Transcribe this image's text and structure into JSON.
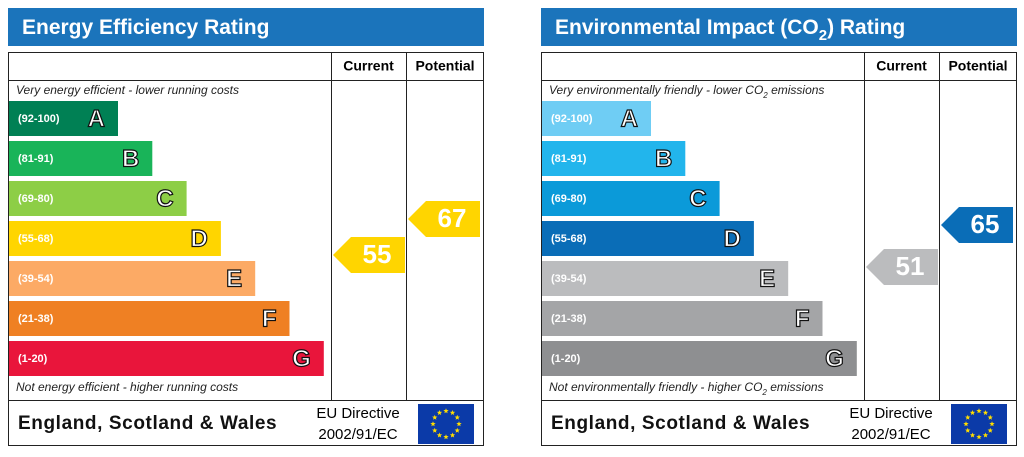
{
  "panels": [
    {
      "title": [
        "Energy Efficiency Rating"
      ],
      "headers": [
        "Current",
        "Potential"
      ],
      "top_note": [
        "Very energy efficient - lower running costs"
      ],
      "bottom_note": [
        "Not energy efficient - higher running costs"
      ],
      "bands": [
        {
          "range": "(92-100)",
          "letter": "A",
          "color": "#008054"
        },
        {
          "range": "(81-91)",
          "letter": "B",
          "color": "#19b459"
        },
        {
          "range": "(69-80)",
          "letter": "C",
          "color": "#8dce46"
        },
        {
          "range": "(55-68)",
          "letter": "D",
          "color": "#ffd500"
        },
        {
          "range": "(39-54)",
          "letter": "E",
          "color": "#fcaa65"
        },
        {
          "range": "(21-38)",
          "letter": "F",
          "color": "#ef8023"
        },
        {
          "range": "(1-20)",
          "letter": "G",
          "color": "#e9153b"
        }
      ],
      "current": "55",
      "potential": "67",
      "footer": "England, Scotland & Wales",
      "directive": [
        "EU Directive",
        "2002/91/EC"
      ]
    },
    {
      "title": [
        "Environmental Impact (CO",
        "2",
        ") Rating"
      ],
      "headers": [
        "Current",
        "Potential"
      ],
      "top_note": [
        "Very environmentally friendly - lower CO",
        "2",
        " emissions"
      ],
      "bottom_note": [
        "Not environmentally friendly - higher CO",
        "2",
        " emissions"
      ],
      "bands": [
        {
          "range": "(92-100)",
          "letter": "A",
          "color": "#6fcdf4"
        },
        {
          "range": "(81-91)",
          "letter": "B",
          "color": "#22b5ec"
        },
        {
          "range": "(69-80)",
          "letter": "C",
          "color": "#0b9ad9"
        },
        {
          "range": "(55-68)",
          "letter": "D",
          "color": "#0a6db7"
        },
        {
          "range": "(39-54)",
          "letter": "E",
          "color": "#bbbcbe"
        },
        {
          "range": "(21-38)",
          "letter": "F",
          "color": "#a4a5a7"
        },
        {
          "range": "(1-20)",
          "letter": "G",
          "color": "#8e8f91"
        }
      ],
      "current": "51",
      "potential": "65",
      "footer": "England, Scotland & Wales",
      "directive": [
        "EU Directive",
        "2002/91/EC"
      ]
    }
  ]
}
